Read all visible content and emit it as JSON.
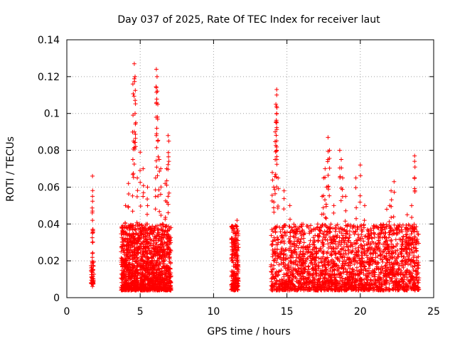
{
  "chart_data": {
    "type": "scatter",
    "title": "Day 037 of 2025, Rate Of TEC Index for receiver laut",
    "xlabel": "GPS time / hours",
    "ylabel": "ROTI / TECUs",
    "xlim": [
      0,
      25
    ],
    "ylim": [
      0,
      0.14
    ],
    "x_ticks": [
      "0",
      "5",
      "10",
      "15",
      "20",
      "25"
    ],
    "y_ticks": [
      "0",
      "0.02",
      "0.04",
      "0.06",
      "0.08",
      "0.1",
      "0.12",
      "0.14"
    ],
    "grid": true,
    "marker": "plus",
    "color": "#ff0000",
    "clusters": [
      {
        "x_range": [
          1.65,
          1.85
        ],
        "y_range": [
          0.007,
          0.02
        ],
        "count": 40,
        "peaks": [
          [
            1.75,
            0.066
          ],
          [
            1.75,
            0.055
          ],
          [
            1.75,
            0.047
          ],
          [
            1.75,
            0.042
          ],
          [
            1.75,
            0.035
          ],
          [
            1.75,
            0.03
          ],
          [
            1.75,
            0.024
          ]
        ]
      },
      {
        "x_range": [
          3.7,
          7.1
        ],
        "y_range": [
          0.004,
          0.04
        ],
        "count": 1400,
        "peaks": [
          [
            4.6,
            0.127
          ],
          [
            4.65,
            0.12
          ],
          [
            4.5,
            0.116
          ],
          [
            4.65,
            0.1
          ],
          [
            4.7,
            0.095
          ],
          [
            4.6,
            0.09
          ],
          [
            4.55,
            0.085
          ],
          [
            4.5,
            0.075
          ],
          [
            4.2,
            0.062
          ],
          [
            4.0,
            0.05
          ],
          [
            4.8,
            0.065
          ],
          [
            5.0,
            0.079
          ],
          [
            5.2,
            0.07
          ],
          [
            5.5,
            0.06
          ],
          [
            6.1,
            0.124
          ],
          [
            6.15,
            0.12
          ],
          [
            6.1,
            0.114
          ],
          [
            6.2,
            0.105
          ],
          [
            6.1,
            0.088
          ],
          [
            6.2,
            0.085
          ],
          [
            6.3,
            0.075
          ],
          [
            6.4,
            0.07
          ],
          [
            6.05,
            0.065
          ],
          [
            6.9,
            0.088
          ],
          [
            6.95,
            0.085
          ],
          [
            6.8,
            0.07
          ],
          [
            6.7,
            0.062
          ],
          [
            6.9,
            0.055
          ]
        ]
      },
      {
        "x_range": [
          11.2,
          11.7
        ],
        "y_range": [
          0.004,
          0.04
        ],
        "count": 220,
        "peaks": [
          [
            11.6,
            0.042
          ]
        ]
      },
      {
        "x_range": [
          13.9,
          24.0
        ],
        "y_range": [
          0.004,
          0.04
        ],
        "count": 2200,
        "peaks": [
          [
            14.3,
            0.113
          ],
          [
            14.3,
            0.11
          ],
          [
            14.25,
            0.105
          ],
          [
            14.3,
            0.1
          ],
          [
            14.3,
            0.095
          ],
          [
            14.2,
            0.09
          ],
          [
            14.3,
            0.08
          ],
          [
            14.2,
            0.075
          ],
          [
            14.1,
            0.06
          ],
          [
            14.4,
            0.065
          ],
          [
            14.0,
            0.068
          ],
          [
            14.8,
            0.058
          ],
          [
            15.2,
            0.05
          ],
          [
            17.8,
            0.087
          ],
          [
            17.9,
            0.08
          ],
          [
            17.8,
            0.075
          ],
          [
            17.6,
            0.07
          ],
          [
            17.5,
            0.065
          ],
          [
            17.7,
            0.06
          ],
          [
            17.4,
            0.055
          ],
          [
            18.2,
            0.05
          ],
          [
            18.6,
            0.08
          ],
          [
            18.7,
            0.075
          ],
          [
            18.8,
            0.065
          ],
          [
            19.0,
            0.055
          ],
          [
            20.0,
            0.072
          ],
          [
            19.7,
            0.065
          ],
          [
            20.3,
            0.05
          ],
          [
            22.3,
            0.063
          ],
          [
            22.1,
            0.058
          ],
          [
            22.0,
            0.05
          ],
          [
            21.8,
            0.048
          ],
          [
            23.7,
            0.077
          ],
          [
            23.7,
            0.074
          ],
          [
            23.5,
            0.05
          ],
          [
            23.2,
            0.045
          ]
        ]
      }
    ]
  }
}
